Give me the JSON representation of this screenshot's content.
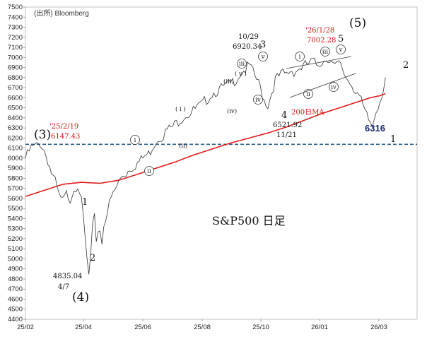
{
  "source": "(出所) Bloomberg",
  "chart_data": {
    "type": "line",
    "title": "S&P500 日足",
    "x_ticks": [
      "25/02",
      "25/04",
      "25/06",
      "25/08",
      "25/10",
      "26/01",
      "26/03"
    ],
    "ylim": [
      4400,
      7500
    ],
    "y_ticks": [
      4400,
      4500,
      4600,
      4700,
      4800,
      4900,
      5000,
      5100,
      5200,
      5300,
      5400,
      5500,
      5600,
      5700,
      5800,
      5900,
      6000,
      6100,
      6200,
      6300,
      6400,
      6500,
      6600,
      6700,
      6800,
      6900,
      7000,
      7100,
      7200,
      7300,
      7400,
      7500
    ],
    "price": [
      [
        0,
        6000
      ],
      [
        3,
        6100
      ],
      [
        6,
        6120
      ],
      [
        8,
        6147.43
      ],
      [
        10,
        6080
      ],
      [
        12,
        5980
      ],
      [
        14,
        5850
      ],
      [
        16,
        5760
      ],
      [
        18,
        5620
      ],
      [
        20,
        5570
      ],
      [
        22,
        5640
      ],
      [
        24,
        5600
      ],
      [
        26,
        5700
      ],
      [
        28,
        5740
      ],
      [
        29,
        5680
      ],
      [
        30,
        5560
      ],
      [
        31,
        5400
      ],
      [
        32,
        5200
      ],
      [
        33,
        4980
      ],
      [
        34,
        4835.04
      ],
      [
        35,
        5020
      ],
      [
        36,
        5300
      ],
      [
        37,
        5400
      ],
      [
        38,
        5200
      ],
      [
        39,
        5280
      ],
      [
        40,
        5300
      ],
      [
        41,
        5150
      ],
      [
        42,
        5350
      ],
      [
        44,
        5480
      ],
      [
        46,
        5600
      ],
      [
        48,
        5680
      ],
      [
        50,
        5760
      ],
      [
        52,
        5830
      ],
      [
        54,
        5850
      ],
      [
        56,
        5900
      ],
      [
        58,
        5920
      ],
      [
        60,
        5950
      ],
      [
        62,
        5980
      ],
      [
        64,
        6020
      ],
      [
        66,
        6040
      ],
      [
        68,
        6110
      ],
      [
        70,
        6170
      ],
      [
        72,
        6210
      ],
      [
        74,
        6230
      ],
      [
        76,
        6280
      ],
      [
        78,
        6300
      ],
      [
        80,
        6330
      ],
      [
        82,
        6370
      ],
      [
        84,
        6400
      ],
      [
        86,
        6430
      ],
      [
        88,
        6440
      ],
      [
        90,
        6470
      ],
      [
        92,
        6500
      ],
      [
        94,
        6520
      ],
      [
        96,
        6560
      ],
      [
        98,
        6600
      ],
      [
        100,
        6640
      ],
      [
        102,
        6660
      ],
      [
        104,
        6680
      ],
      [
        106,
        6700
      ],
      [
        108,
        6720
      ],
      [
        110,
        6740
      ],
      [
        112,
        6770
      ],
      [
        114,
        6810
      ],
      [
        116,
        6860
      ],
      [
        118,
        6880
      ],
      [
        120,
        6920.34
      ],
      [
        122,
        6850
      ],
      [
        124,
        6780
      ],
      [
        126,
        6700
      ],
      [
        128,
        6580
      ],
      [
        130,
        6521.92
      ],
      [
        132,
        6650
      ],
      [
        134,
        6780
      ],
      [
        136,
        6810
      ],
      [
        138,
        6840
      ],
      [
        140,
        6830
      ],
      [
        142,
        6870
      ],
      [
        144,
        6860
      ],
      [
        146,
        6880
      ],
      [
        148,
        6900
      ],
      [
        150,
        6920
      ],
      [
        152,
        6940
      ],
      [
        154,
        6960
      ],
      [
        156,
        6930
      ],
      [
        158,
        6950
      ],
      [
        160,
        6970
      ],
      [
        162,
        7002.28
      ],
      [
        164,
        6950
      ],
      [
        166,
        6900
      ],
      [
        168,
        6940
      ],
      [
        170,
        6880
      ],
      [
        172,
        6800
      ],
      [
        174,
        6760
      ],
      [
        176,
        6700
      ],
      [
        178,
        6650
      ],
      [
        180,
        6560
      ],
      [
        182,
        6450
      ],
      [
        184,
        6380
      ],
      [
        186,
        6316
      ],
      [
        188,
        6480
      ],
      [
        190,
        6570
      ],
      [
        192,
        6700
      ],
      [
        193,
        6800
      ]
    ],
    "ma200": [
      [
        0,
        5620
      ],
      [
        10,
        5680
      ],
      [
        20,
        5740
      ],
      [
        30,
        5760
      ],
      [
        40,
        5750
      ],
      [
        50,
        5780
      ],
      [
        60,
        5840
      ],
      [
        70,
        5900
      ],
      [
        80,
        5960
      ],
      [
        90,
        6030
      ],
      [
        100,
        6090
      ],
      [
        110,
        6150
      ],
      [
        120,
        6200
      ],
      [
        130,
        6250
      ],
      [
        140,
        6310
      ],
      [
        150,
        6380
      ],
      [
        160,
        6450
      ],
      [
        170,
        6510
      ],
      [
        175,
        6540
      ],
      [
        180,
        6570
      ],
      [
        185,
        6600
      ],
      [
        190,
        6620
      ],
      [
        193,
        6640
      ]
    ],
    "ma_label": "200日MA",
    "hline": 6137,
    "annotations": {
      "w3_label": "(3)",
      "w3_date": "'25/2/19",
      "w3_val": "6147.43",
      "w4_label": "(4)",
      "w4_val": "4835.04",
      "w4_date": "4/7",
      "w5_label": "(5)",
      "w5_date": "'26/1/28",
      "w5_val": "7002.28",
      "p1029_date": "10/29",
      "p1029_val": "6920.34",
      "p1121_val": "6521.92",
      "p1121_date": "11/21",
      "n1": "1",
      "n2": "2",
      "n3": "3",
      "n4": "4",
      "n5": "5",
      "level": "6316",
      "r_i": "i",
      "r_ii": "ii",
      "r_iii": "iii",
      "r_iv": "iv",
      "r_v": "v",
      "r_i_p": "( i )",
      "r_ii_p": "(ii)",
      "r_iii_p": "(iii)",
      "r_iv_p": "(iv)",
      "r_v_p": "( v )"
    }
  }
}
